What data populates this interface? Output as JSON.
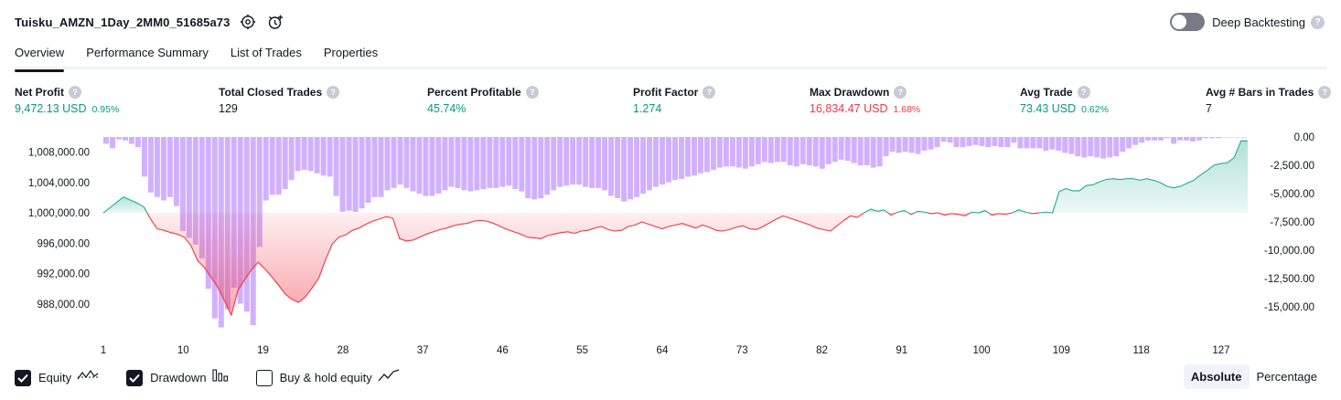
{
  "header": {
    "strategy_name": "Tuisku_AMZN_1Day_2MM0_51685a73",
    "deep_backtesting_label": "Deep Backtesting",
    "help_glyph": "?"
  },
  "tabs": [
    {
      "label": "Overview",
      "active": true
    },
    {
      "label": "Performance Summary",
      "active": false
    },
    {
      "label": "List of Trades",
      "active": false
    },
    {
      "label": "Properties",
      "active": false
    }
  ],
  "metrics": [
    {
      "label": "Net Profit",
      "value": "9,472.13 USD",
      "pct": "0.95%",
      "color": "#089981"
    },
    {
      "label": "Total Closed Trades",
      "value": "129",
      "pct": "",
      "color": "#131722"
    },
    {
      "label": "Percent Profitable",
      "value": "45.74%",
      "pct": "",
      "color": "#089981"
    },
    {
      "label": "Profit Factor",
      "value": "1.274",
      "pct": "",
      "color": "#089981"
    },
    {
      "label": "Max Drawdown",
      "value": "16,834.47 USD",
      "pct": "1.68%",
      "color": "#f23645"
    },
    {
      "label": "Avg Trade",
      "value": "73.43 USD",
      "pct": "0.62%",
      "color": "#089981"
    },
    {
      "label": "Avg # Bars in Trades",
      "value": "7",
      "pct": "",
      "color": "#131722"
    }
  ],
  "legend": {
    "equity": {
      "label": "Equity",
      "checked": true
    },
    "drawdown": {
      "label": "Drawdown",
      "checked": true
    },
    "buy_hold": {
      "label": "Buy & hold equity",
      "checked": false
    }
  },
  "modes": [
    {
      "label": "Absolute",
      "active": true
    },
    {
      "label": "Percentage",
      "active": false
    }
  ],
  "chart_data": {
    "type": "area",
    "x_tick_labels": [
      "1",
      "10",
      "19",
      "28",
      "37",
      "46",
      "55",
      "64",
      "73",
      "82",
      "91",
      "100",
      "109",
      "118",
      "127"
    ],
    "x_range": [
      1,
      130
    ],
    "left_axis": {
      "tick_labels": [
        "1,008,000.00",
        "1,004,000.00",
        "1,000,000.00",
        "996,000.00",
        "992,000.00",
        "988,000.00"
      ],
      "ticks": [
        1008000,
        1004000,
        1000000,
        996000,
        992000,
        988000
      ],
      "range": [
        984600,
        1010000
      ]
    },
    "right_axis": {
      "tick_labels": [
        "0.00",
        "-2,500.00",
        "-5,000.00",
        "-7,500.00",
        "-10,000.00",
        "-12,500.00",
        "-15,000.00"
      ],
      "ticks": [
        0,
        -2500,
        -5000,
        -7500,
        -10000,
        -12500,
        -15000
      ],
      "range": [
        -17000,
        0
      ]
    },
    "baseline": 1000000,
    "colors": {
      "equity_up": "#22ab94",
      "equity_down": "#f23645",
      "drawdown_bar": "#d1b0ff"
    },
    "series": [
      {
        "name": "Equity",
        "values": [
          1000000,
          1000700,
          1001400,
          1002100,
          1001700,
          1001300,
          1000800,
          999200,
          997900,
          997700,
          997400,
          997200,
          996800,
          995700,
          993700,
          992800,
          991500,
          990200,
          988400,
          986500,
          989800,
          991200,
          992500,
          993500,
          992600,
          991600,
          990500,
          989300,
          988600,
          988200,
          988900,
          990100,
          991400,
          993800,
          995900,
          996800,
          997100,
          997700,
          998000,
          998500,
          998900,
          999200,
          999500,
          999300,
          996600,
          996300,
          996400,
          996800,
          997200,
          997500,
          997800,
          998000,
          998300,
          998500,
          998600,
          998900,
          999000,
          998900,
          998600,
          998200,
          997800,
          997500,
          997200,
          996800,
          996700,
          996600,
          997000,
          997200,
          997400,
          997500,
          997300,
          997600,
          997700,
          998000,
          998200,
          997800,
          997600,
          997700,
          998200,
          998400,
          998800,
          998500,
          998200,
          997900,
          998200,
          998400,
          998600,
          998300,
          998000,
          998400,
          998100,
          997700,
          997600,
          997800,
          998100,
          998300,
          997900,
          997800,
          998200,
          998700,
          999200,
          999600,
          999300,
          999000,
          998700,
          998400,
          998000,
          997800,
          997600,
          998300,
          999000,
          999600,
          999400,
          1000000,
          1000500,
          1000200,
          1000400,
          999700,
          1000100,
          1000300,
          999800,
          1000200,
          1000100,
          999900,
          1000000,
          999700,
          999900,
          999800,
          999600,
          1000100,
          1000000,
          1000300,
          999700,
          999900,
          999800,
          1000000,
          1000400,
          1000100,
          999900,
          1000000,
          1000100,
          1000000,
          1002800,
          1003200,
          1002900,
          1002900,
          1003600,
          1003700,
          1004100,
          1004400,
          1004500,
          1004400,
          1004500,
          1004500,
          1004300,
          1004500,
          1004300,
          1004000,
          1003500,
          1003300,
          1003500,
          1003900,
          1004300,
          1005000,
          1005600,
          1006300,
          1006500,
          1006600,
          1007300,
          1009500,
          1009472
        ]
      },
      {
        "name": "Drawdown",
        "values": [
          -600,
          -1000,
          -200,
          -300,
          -600,
          -900,
          -3500,
          -4900,
          -5300,
          -5600,
          -5300,
          -6100,
          -8300,
          -8900,
          -9500,
          -10700,
          -13400,
          -16000,
          -16800,
          -15200,
          -13300,
          -14700,
          -15400,
          -16600,
          -9700,
          -5600,
          -5100,
          -5100,
          -4600,
          -3800,
          -3000,
          -2900,
          -3000,
          -3200,
          -3400,
          -3500,
          -5200,
          -6600,
          -6500,
          -6600,
          -6300,
          -5800,
          -5300,
          -5300,
          -4700,
          -4500,
          -4200,
          -4500,
          -4800,
          -5000,
          -5200,
          -5200,
          -5000,
          -4700,
          -4400,
          -4500,
          -4700,
          -4800,
          -4700,
          -4600,
          -4500,
          -4500,
          -4400,
          -4300,
          -4600,
          -4800,
          -5400,
          -5500,
          -5400,
          -5100,
          -4700,
          -4400,
          -4300,
          -4200,
          -4200,
          -4400,
          -4500,
          -4500,
          -4700,
          -5200,
          -5400,
          -5700,
          -5500,
          -5300,
          -5000,
          -4700,
          -4400,
          -4200,
          -4000,
          -3800,
          -3700,
          -3500,
          -3400,
          -3200,
          -3100,
          -2900,
          -2700,
          -2600,
          -2600,
          -2700,
          -2800,
          -2600,
          -2400,
          -2200,
          -2300,
          -2200,
          -2200,
          -2500,
          -2600,
          -2400,
          -2500,
          -2600,
          -2800,
          -2400,
          -2200,
          -2000,
          -2100,
          -2300,
          -2500,
          -2500,
          -2700,
          -2600,
          -1700,
          -1300,
          -1400,
          -1300,
          -1400,
          -1500,
          -1200,
          -1100,
          -900,
          -400,
          -500,
          -900,
          -900,
          -800,
          -700,
          -800,
          -900,
          -800,
          -900,
          -900,
          -500,
          -1000,
          -1000,
          -1000,
          -1000,
          -1200,
          -1100,
          -1200,
          -1400,
          -1500,
          -1700,
          -1800,
          -1700,
          -1800,
          -1900,
          -1800,
          -1700,
          -1300,
          -1000,
          -700,
          -500,
          -300,
          -300,
          -300,
          -100,
          -600,
          -300,
          -300,
          -400,
          -300,
          -100,
          -100,
          -100,
          0,
          0,
          0,
          0
        ]
      }
    ]
  }
}
